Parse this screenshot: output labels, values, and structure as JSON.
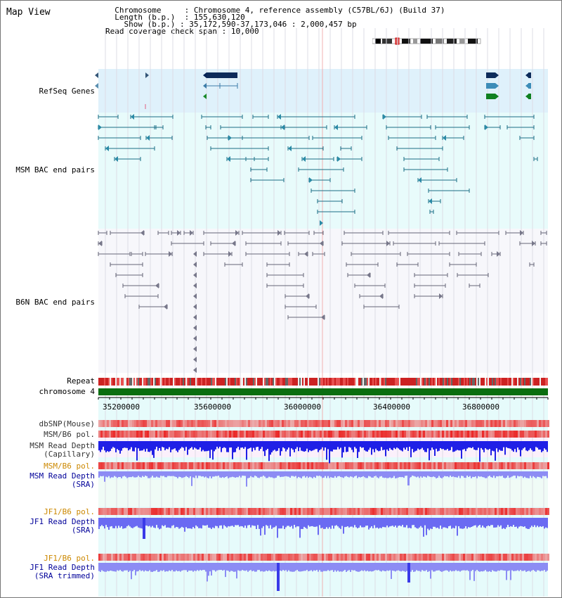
{
  "title": "Map View",
  "info": {
    "chromosome_label": "Chromosome",
    "chromosome_value": "Chromosome 4, reference assembly (C57BL/6J) (Build 37)",
    "length_label": "Length (b.p.)",
    "length_value": "155,630,120",
    "show_label": "Show (b.p.)",
    "show_value": "35,172,590-37,173,046 : 2,000,457 bp",
    "read_span_label": "Read coverage check span",
    "read_span_value": "10,000"
  },
  "tracks": {
    "refseq": "RefSeq Genes",
    "msm_bac": "MSM BAC end pairs",
    "b6n_bac": "B6N BAC end pairs",
    "repeat": "Repeat",
    "chromosome": "chromosome 4",
    "dbsnp": "dbSNP(Mouse)",
    "msm_b6_pol": "MSM/B6 pol.",
    "msm_read_cap": "MSM Read Depth\n(Capillary)",
    "msm_b6_pol2": "MSM/B6 pol.",
    "msm_read_sra": "MSM Read Depth\n(SRA)",
    "jf1_b6_pol": "JF1/B6 pol.",
    "jf1_read_sra": "JF1 Read Depth\n(SRA)",
    "jf1_b6_pol2": "JF1/B6 pol.",
    "jf1_read_trim": "JF1 Read Depth\n(SRA trimmed)"
  },
  "axis": {
    "ticks": [
      "35200000",
      "35600000",
      "36000000",
      "36400000",
      "36800000"
    ]
  },
  "colors": {
    "refseq_bg": "#dff1fb",
    "msm_bg": "#e8fbfb",
    "b6n_bg": "#f7f7fb",
    "light_bg": "#f0fbf6",
    "chrom_green": "#0a6e10",
    "red": "#e03030",
    "blue": "#2222ee",
    "lightblue": "#8a8af2",
    "msm_label": "#006a80",
    "b6n_label": "#555566",
    "navy": "#000099",
    "orange": "#cc8800"
  }
}
